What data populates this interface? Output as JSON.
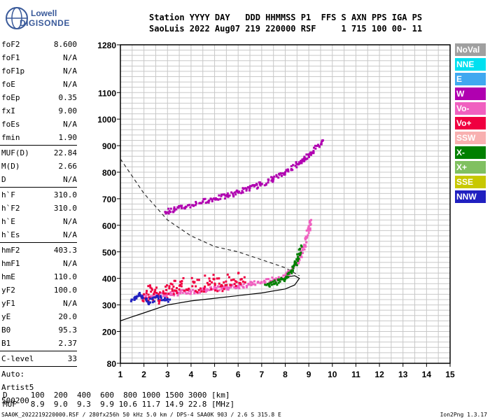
{
  "logo": {
    "line1": "Lowell",
    "line2": "DIGISONDE"
  },
  "header": {
    "line1": "Station YYYY DAY   DDD HHMMSS P1  FFS S AXN PPS IGA PS",
    "line2": "SaoLuis 2022 Aug07 219 220000 RSF     1 715 100 00- 11"
  },
  "params_group1": [
    {
      "k": "foF2",
      "v": "8.600"
    },
    {
      "k": "foF1",
      "v": "N/A"
    },
    {
      "k": "foF1p",
      "v": "N/A"
    },
    {
      "k": "foE",
      "v": "N/A"
    },
    {
      "k": "foEp",
      "v": "0.35"
    },
    {
      "k": "fxI",
      "v": "9.00"
    },
    {
      "k": "foEs",
      "v": "N/A"
    },
    {
      "k": "fmin",
      "v": "1.90"
    }
  ],
  "params_group2": [
    {
      "k": "MUF(D)",
      "v": "22.84"
    },
    {
      "k": "M(D)",
      "v": "2.66"
    },
    {
      "k": "D",
      "v": "N/A"
    }
  ],
  "params_group3": [
    {
      "k": "h`F",
      "v": "310.0"
    },
    {
      "k": "h`F2",
      "v": "310.0"
    },
    {
      "k": "h`E",
      "v": "N/A"
    },
    {
      "k": "h`Es",
      "v": "N/A"
    }
  ],
  "params_group4": [
    {
      "k": "hmF2",
      "v": "403.3"
    },
    {
      "k": "hmF1",
      "v": "N/A"
    },
    {
      "k": "hmE",
      "v": "110.0"
    },
    {
      "k": "yF2",
      "v": "100.0"
    },
    {
      "k": "yF1",
      "v": "N/A"
    },
    {
      "k": "yE",
      "v": "20.0"
    },
    {
      "k": "B0",
      "v": "95.3"
    },
    {
      "k": "B1",
      "v": "2.37"
    }
  ],
  "clevel": {
    "k": "C-level",
    "v": "33"
  },
  "auto": [
    "Auto:",
    "Artist5",
    "500200"
  ],
  "bottom_table": {
    "line1": "D     100  200  400  600  800 1000 1500 3000 [km]",
    "line2": "MUF   8.9  9.0  9.3  9.9 10.6 11.7 14.9 22.8 [MHz]"
  },
  "footer": {
    "left": "SAA0K_2022219220000.RSF / 280fx256h 50 kHz 5.0 km / DPS-4 SAA0K 903 / 2.6 S 315.8 E",
    "right": "Ion2Png 1.3.17"
  },
  "legend": [
    {
      "label": "NoVal",
      "color": "#a0a0a0"
    },
    {
      "label": "NNE",
      "color": "#00e0f0"
    },
    {
      "label": "E",
      "color": "#40a8f0"
    },
    {
      "label": "W",
      "color": "#b000b0"
    },
    {
      "label": "Vo-",
      "color": "#f060c0"
    },
    {
      "label": "Vo+",
      "color": "#f00040"
    },
    {
      "label": "SSW",
      "color": "#f8b0b0"
    },
    {
      "label": "X-",
      "color": "#008000"
    },
    {
      "label": "X+",
      "color": "#80c060"
    },
    {
      "label": "SSE",
      "color": "#c8c800"
    },
    {
      "label": "NNW",
      "color": "#2020c0"
    }
  ],
  "chart_data": {
    "type": "scatter",
    "xlim": [
      1,
      15
    ],
    "ylim": [
      80,
      1280
    ],
    "x_ticks": [
      1,
      2,
      3,
      4,
      5,
      6,
      7,
      8,
      9,
      10,
      11,
      12,
      13,
      14,
      15
    ],
    "y_ticks": [
      80,
      200,
      300,
      400,
      500,
      600,
      700,
      800,
      900,
      1000,
      1100,
      1280
    ],
    "grid": true,
    "xlabel": "",
    "ylabel": "",
    "series": [
      {
        "role": "ordinary F2 trace",
        "color": "#f060c0",
        "points": [
          [
            1.9,
            330
          ],
          [
            2.5,
            335
          ],
          [
            3,
            340
          ],
          [
            3.5,
            345
          ],
          [
            4,
            350
          ],
          [
            4.5,
            355
          ],
          [
            5,
            360
          ],
          [
            5.5,
            365
          ],
          [
            6,
            370
          ],
          [
            6.5,
            378
          ],
          [
            7,
            385
          ],
          [
            7.5,
            395
          ],
          [
            8,
            410
          ],
          [
            8.3,
            430
          ],
          [
            8.6,
            470
          ],
          [
            8.8,
            520
          ],
          [
            9,
            580
          ],
          [
            9.1,
            620
          ]
        ]
      },
      {
        "role": "extraordinary trace",
        "color": "#008000",
        "points": [
          [
            7.2,
            375
          ],
          [
            7.6,
            385
          ],
          [
            8,
            400
          ],
          [
            8.3,
            430
          ],
          [
            8.5,
            470
          ],
          [
            8.7,
            520
          ]
        ]
      },
      {
        "role": "multi-hop trace",
        "color": "#b000b0",
        "points": [
          [
            2.9,
            650
          ],
          [
            3.3,
            660
          ],
          [
            3.8,
            670
          ],
          [
            4.5,
            690
          ],
          [
            5,
            700
          ],
          [
            5.5,
            710
          ],
          [
            6,
            725
          ],
          [
            6.5,
            740
          ],
          [
            7,
            755
          ],
          [
            7.5,
            775
          ],
          [
            8,
            800
          ],
          [
            8.5,
            830
          ],
          [
            8.8,
            850
          ],
          [
            9.2,
            880
          ],
          [
            9.6,
            920
          ]
        ]
      },
      {
        "role": "spread echoes",
        "color": "#f00040",
        "points": [
          [
            2,
            340
          ],
          [
            2.3,
            350
          ],
          [
            2.7,
            330
          ],
          [
            3.2,
            360
          ],
          [
            3.6,
            380
          ],
          [
            4.2,
            370
          ],
          [
            4.8,
            390
          ],
          [
            5.2,
            380
          ],
          [
            5.8,
            395
          ],
          [
            6.3,
            385
          ]
        ]
      },
      {
        "role": "NNW echoes",
        "color": "#2020c0",
        "points": [
          [
            1.5,
            320
          ],
          [
            1.8,
            340
          ],
          [
            2.2,
            310
          ],
          [
            2.6,
            330
          ],
          [
            3.1,
            320
          ]
        ]
      }
    ],
    "profile_solid": [
      [
        1,
        240
      ],
      [
        1.5,
        255
      ],
      [
        2,
        270
      ],
      [
        3,
        300
      ],
      [
        4,
        315
      ],
      [
        5,
        325
      ],
      [
        6,
        335
      ],
      [
        7,
        345
      ],
      [
        8,
        360
      ],
      [
        8.4,
        375
      ],
      [
        8.6,
        400
      ],
      [
        8.4,
        410
      ],
      [
        8,
        405
      ]
    ],
    "profile_dashed": [
      [
        1,
        850
      ],
      [
        2,
        720
      ],
      [
        3,
        620
      ],
      [
        4,
        560
      ],
      [
        5,
        520
      ],
      [
        6,
        500
      ],
      [
        7,
        470
      ],
      [
        8,
        440
      ],
      [
        8.6,
        410
      ]
    ]
  }
}
